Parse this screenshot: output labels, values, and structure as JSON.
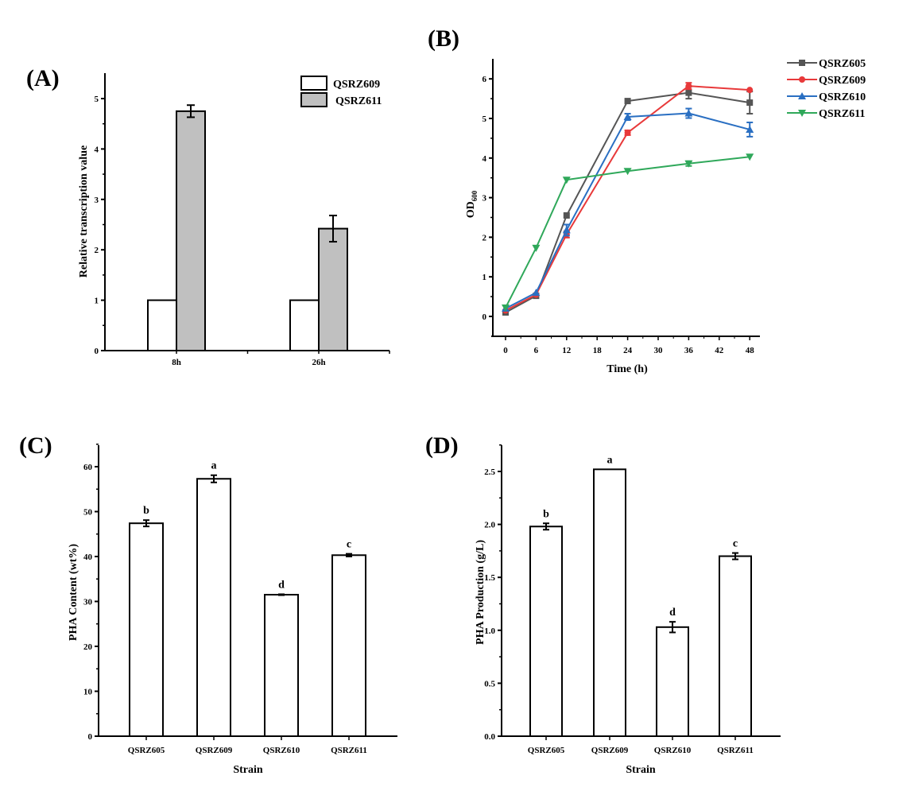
{
  "figure": {
    "panels": [
      "(A)",
      "(B)",
      "(C)",
      "(D)"
    ]
  },
  "chart_data": [
    {
      "id": "A",
      "type": "bar",
      "panel_label": "(A)",
      "title": "",
      "xlabel": "",
      "ylabel": "Relative transcription value",
      "categories": [
        "8h",
        "26h"
      ],
      "series": [
        {
          "name": "QSRZ609",
          "color": "#ffffff",
          "values": [
            1.0,
            1.0
          ],
          "errors": [
            0,
            0
          ]
        },
        {
          "name": "QSRZ611",
          "color": "#c0c0c0",
          "values": [
            4.75,
            2.42
          ],
          "errors": [
            0.12,
            0.26
          ]
        }
      ],
      "ylim": [
        0,
        5.5
      ],
      "yticks": [
        "0",
        "1",
        "2",
        "3",
        "4",
        "5"
      ],
      "grid": false,
      "legend": "top-right"
    },
    {
      "id": "B",
      "type": "line",
      "panel_label": "(B)",
      "title": "",
      "xlabel": "Time (h)",
      "ylabel": "OD",
      "ylabel_sub": "600",
      "x": [
        0,
        6,
        12,
        24,
        36,
        48
      ],
      "xticks": [
        "0",
        "6",
        "12",
        "18",
        "24",
        "30",
        "36",
        "42",
        "48"
      ],
      "yticks": [
        "0",
        "1",
        "2",
        "3",
        "4",
        "5",
        "6"
      ],
      "xlim": [
        -2,
        50
      ],
      "ylim": [
        -0.5,
        6.5
      ],
      "series": [
        {
          "name": "QSRZ605",
          "color": "#555555",
          "marker": "square",
          "values": [
            0.1,
            0.52,
            2.55,
            5.44,
            5.65,
            5.4
          ],
          "errors": [
            0.03,
            0.03,
            0.05,
            0.04,
            0.15,
            0.28
          ]
        },
        {
          "name": "QSRZ609",
          "color": "#e8393a",
          "marker": "circle",
          "values": [
            0.15,
            0.55,
            2.07,
            4.64,
            5.82,
            5.72
          ],
          "errors": [
            0.03,
            0.04,
            0.08,
            0.06,
            0.08,
            0.04
          ]
        },
        {
          "name": "QSRZ610",
          "color": "#2a6fc2",
          "marker": "triangle-up",
          "values": [
            0.2,
            0.6,
            2.18,
            5.04,
            5.13,
            4.72
          ],
          "errors": [
            0.03,
            0.04,
            0.14,
            0.08,
            0.12,
            0.18
          ]
        },
        {
          "name": "QSRZ611",
          "color": "#2fa85a",
          "marker": "triangle-down",
          "values": [
            0.22,
            1.73,
            3.45,
            3.67,
            3.86,
            4.03
          ],
          "errors": [
            0.02,
            0.03,
            0.04,
            0.04,
            0.06,
            0.05
          ]
        }
      ],
      "grid": false,
      "legend": "top-right (outside)"
    },
    {
      "id": "C",
      "type": "bar",
      "panel_label": "(C)",
      "title": "",
      "xlabel": "Strain",
      "ylabel": "PHA Content (wt%)",
      "categories": [
        "QSRZ605",
        "QSRZ609",
        "QSRZ610",
        "QSRZ611"
      ],
      "values": [
        47.4,
        57.3,
        31.5,
        40.3
      ],
      "errors": [
        0.7,
        0.8,
        0.1,
        0.3
      ],
      "annotations": [
        "b",
        "a",
        "d",
        "c"
      ],
      "ylim": [
        0,
        65
      ],
      "yticks": [
        "0",
        "10",
        "20",
        "30",
        "40",
        "50",
        "60"
      ],
      "grid": false
    },
    {
      "id": "D",
      "type": "bar",
      "panel_label": "(D)",
      "title": "",
      "xlabel": "Strain",
      "ylabel": "PHA Production (g/L)",
      "categories": [
        "QSRZ605",
        "QSRZ609",
        "QSRZ610",
        "QSRZ611"
      ],
      "values": [
        1.98,
        2.52,
        1.03,
        1.7
      ],
      "errors": [
        0.03,
        0.0,
        0.05,
        0.03
      ],
      "annotations": [
        "b",
        "a",
        "d",
        "c"
      ],
      "ylim": [
        0,
        2.75
      ],
      "yticks": [
        "0.0",
        "0.5",
        "1.0",
        "1.5",
        "2.0",
        "2.5"
      ],
      "grid": false
    }
  ]
}
